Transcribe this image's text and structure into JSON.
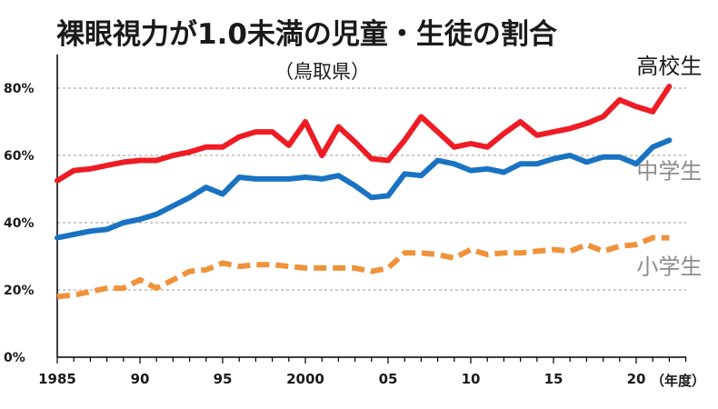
{
  "chart_data": {
    "type": "line",
    "title": "裸眼視力が1.0未満の児童・生徒の割合",
    "subtitle": "（鳥取県）",
    "x_unit": "（年度）",
    "ylim": [
      0,
      80
    ],
    "xlim": [
      1985,
      2023
    ],
    "y_ticks": [
      0,
      20,
      40,
      60,
      80
    ],
    "y_tick_labels": [
      "0%",
      "20%",
      "40%",
      "60%",
      "80%"
    ],
    "x_ticks": [
      1985,
      1990,
      1995,
      2000,
      2005,
      2010,
      2015,
      2020
    ],
    "x_tick_labels": [
      "1985",
      "90",
      "95",
      "2000",
      "05",
      "10",
      "15",
      "20"
    ],
    "grid": "horizontal dashed",
    "legend": "labels beside lines",
    "x": [
      1985,
      1986,
      1987,
      1988,
      1989,
      1990,
      1991,
      1992,
      1993,
      1994,
      1995,
      1996,
      1997,
      1998,
      1999,
      2000,
      2001,
      2002,
      2003,
      2004,
      2005,
      2006,
      2007,
      2008,
      2009,
      2010,
      2011,
      2012,
      2013,
      2014,
      2015,
      2016,
      2017,
      2018,
      2019,
      2020,
      2021,
      2022
    ],
    "series": [
      {
        "name": "高校生",
        "color": "#ee1c24",
        "style": "solid",
        "values": [
          52.5,
          55.5,
          56.0,
          57.0,
          58.0,
          58.5,
          58.5,
          60.0,
          61.0,
          62.5,
          62.5,
          65.5,
          67.0,
          67.0,
          63.0,
          70.0,
          60.0,
          68.5,
          64.0,
          59.0,
          58.5,
          64.5,
          71.5,
          67.0,
          62.5,
          63.5,
          62.5,
          66.5,
          70.0,
          66.0,
          67.0,
          68.0,
          69.5,
          71.5,
          76.5,
          74.5,
          73.0,
          80.5
        ]
      },
      {
        "name": "中学生",
        "color": "#1a73c2",
        "style": "solid",
        "values": [
          35.5,
          36.5,
          37.5,
          38.0,
          40.0,
          41.0,
          42.5,
          45.0,
          47.5,
          50.5,
          48.5,
          53.5,
          53.0,
          53.0,
          53.0,
          53.5,
          53.0,
          54.0,
          51.0,
          47.5,
          48.0,
          54.5,
          54.0,
          58.5,
          57.5,
          55.5,
          56.0,
          55.0,
          57.5,
          57.5,
          59.0,
          60.0,
          58.0,
          59.5,
          59.5,
          57.5,
          62.5,
          64.5
        ]
      },
      {
        "name": "小学生",
        "color": "#f0923a",
        "style": "dashed",
        "values": [
          18.0,
          18.5,
          19.5,
          20.5,
          20.5,
          23.0,
          20.5,
          23.0,
          25.5,
          26.0,
          28.0,
          27.0,
          27.5,
          27.5,
          27.0,
          26.5,
          26.5,
          26.5,
          26.5,
          25.5,
          26.5,
          31.0,
          31.0,
          30.5,
          29.5,
          32.0,
          30.5,
          31.0,
          31.0,
          31.5,
          32.0,
          31.5,
          33.5,
          31.5,
          33.0,
          33.5,
          35.5,
          35.5
        ]
      }
    ],
    "label_colors": {
      "高校生": "#1a1a1a",
      "中学生": "#8c8c8c",
      "小学生": "#8c8c8c"
    }
  }
}
